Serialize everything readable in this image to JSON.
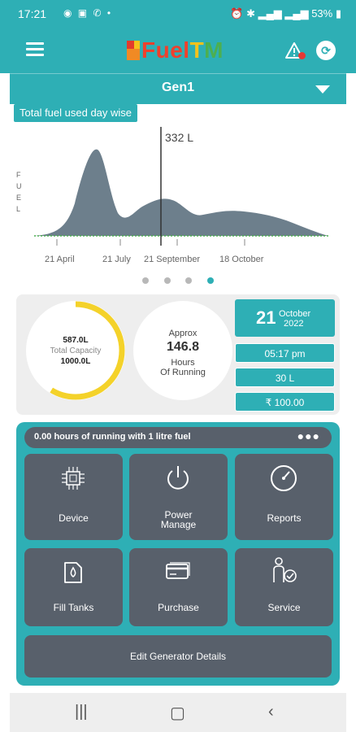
{
  "status_bar": {
    "time": "17:21",
    "battery": "53%"
  },
  "app": {
    "logo_text_fuel": "Fuel",
    "logo_text_t": "T",
    "logo_text_m": "M"
  },
  "generator": {
    "selected": "Gen1"
  },
  "chart_panel": {
    "tag": "Total fuel used day wise"
  },
  "chart_data": {
    "type": "area",
    "ylabel": "FUEL",
    "x_ticks": [
      "21 April",
      "21 July",
      "21 September",
      "18 October"
    ],
    "cursor_value_label": "332 L",
    "cursor_x": "21 September",
    "series_color": "#6d7f8c"
  },
  "pager": {
    "count": 4,
    "active_index": 3
  },
  "capacity": {
    "used": "587.0L",
    "label": "Total Capacity",
    "total": "1000.0L",
    "fill_fraction": 0.587,
    "ring_color": "#f4d22a"
  },
  "running": {
    "approx_label": "Approx",
    "hours_value": "146.8",
    "hours_label": "Hours",
    "running_label": "Of Running"
  },
  "date": {
    "day": "21",
    "month": "October",
    "year": "2022"
  },
  "stats": {
    "time": "05:17 pm",
    "fuel": "30 L",
    "cost": "₹ 100.00"
  },
  "menu": {
    "run_note": "0.00 hours of running with 1 litre fuel",
    "tiles": [
      {
        "label": "Device",
        "icon": "chip-icon"
      },
      {
        "label": "Power\nManage",
        "icon": "power-icon"
      },
      {
        "label": "Reports",
        "icon": "gauge-icon"
      },
      {
        "label": "Fill Tanks",
        "icon": "fuel-can-icon"
      },
      {
        "label": "Purchase",
        "icon": "credit-card-icon"
      },
      {
        "label": "Service",
        "icon": "service-person-icon"
      }
    ],
    "edit_label": "Edit Generator Details"
  },
  "colors": {
    "accent": "#2eafb5",
    "tile": "#58606b"
  }
}
